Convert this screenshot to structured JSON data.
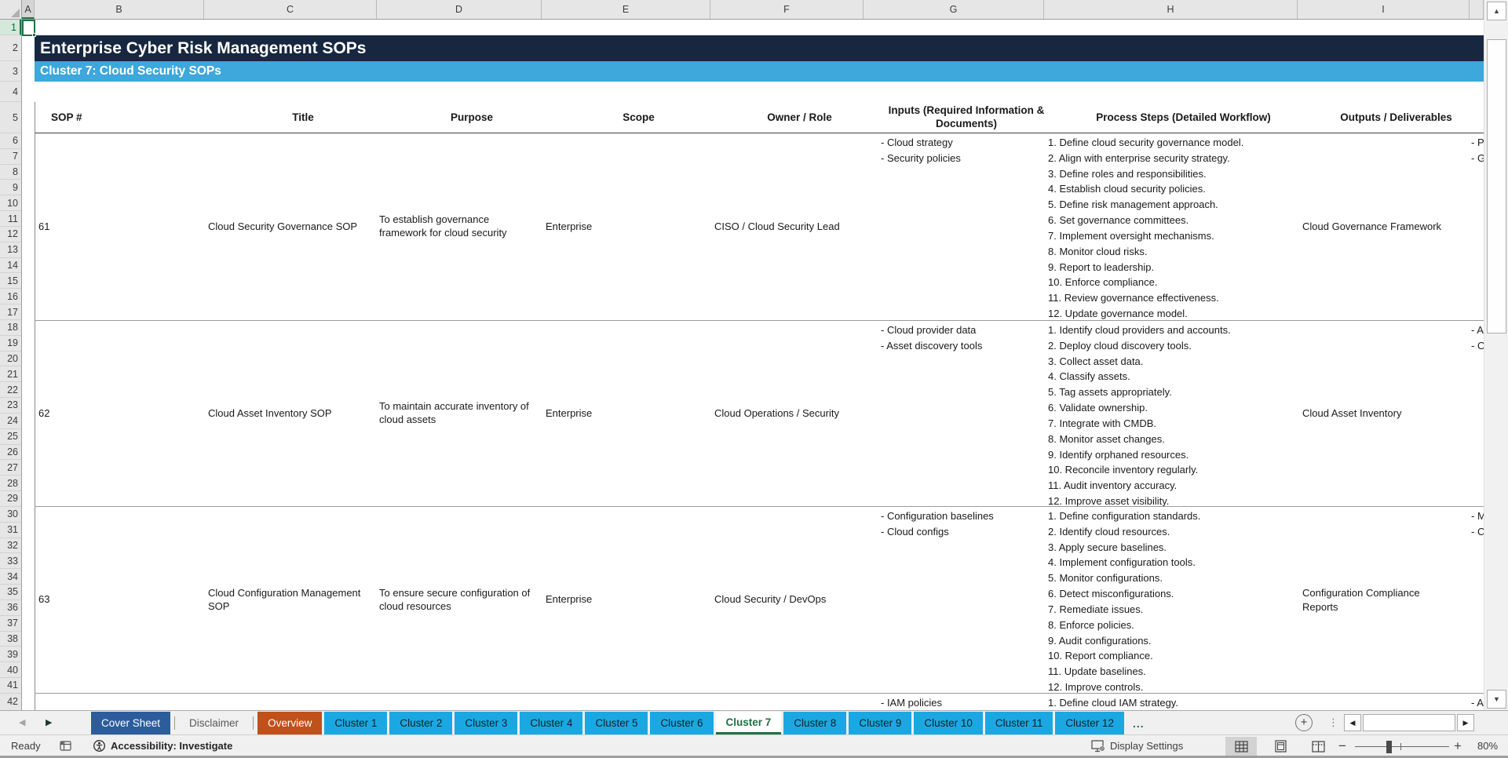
{
  "banner": {
    "title": "Enterprise Cyber Risk Management SOPs",
    "subtitle": "Cluster 7: Cloud Security SOPs"
  },
  "grid": {
    "column_letters": [
      "A",
      "B",
      "C",
      "D",
      "E",
      "F",
      "G",
      "H",
      "I"
    ],
    "row_count": 42,
    "active_cell": "A1"
  },
  "table": {
    "headers": [
      "SOP #",
      "Title",
      "Purpose",
      "Scope",
      "Owner / Role",
      "Inputs (Required Information & Documents)",
      "Process Steps (Detailed Workflow)",
      "Outputs / Deliverables"
    ],
    "sops": [
      {
        "num": "61",
        "title": "Cloud Security Governance SOP",
        "purpose": "To establish governance framework for cloud security",
        "scope": "Enterprise",
        "owner": "CISO / Cloud Security Lead",
        "inputs": [
          "- Cloud strategy",
          "- Security policies"
        ],
        "steps": [
          "1. Define cloud security governance model.",
          "2. Align with enterprise security strategy.",
          "3. Define roles and responsibilities.",
          "4. Establish cloud security policies.",
          "5. Define risk management approach.",
          "6. Set governance committees.",
          "7. Implement oversight mechanisms.",
          "8. Monitor cloud risks.",
          "9. Report to leadership.",
          "10. Enforce compliance.",
          "11. Review governance effectiveness.",
          "12. Update governance model."
        ],
        "outputs": "Cloud Governance Framework",
        "truncated": [
          "- Po",
          "- Go"
        ]
      },
      {
        "num": "62",
        "title": "Cloud Asset Inventory SOP",
        "purpose": "To maintain accurate inventory of cloud assets",
        "scope": "Enterprise",
        "owner": "Cloud Operations / Security",
        "inputs": [
          "- Cloud provider data",
          "- Asset discovery tools"
        ],
        "steps": [
          "1. Identify cloud providers and accounts.",
          "2. Deploy cloud discovery tools.",
          "3. Collect asset data.",
          "4. Classify assets.",
          "5. Tag assets appropriately.",
          "6. Validate ownership.",
          "7. Integrate with CMDB.",
          "8. Monitor asset changes.",
          "9. Identify orphaned resources.",
          "10. Reconcile inventory regularly.",
          "11. Audit inventory accuracy.",
          "12. Improve asset visibility."
        ],
        "outputs": "Cloud Asset Inventory",
        "truncated": [
          "- As",
          "- Or"
        ]
      },
      {
        "num": "63",
        "title": "Cloud Configuration Management SOP",
        "purpose": "To ensure secure configuration of cloud resources",
        "scope": "Enterprise",
        "owner": "Cloud Security / DevOps",
        "inputs": [
          "- Configuration baselines",
          "- Cloud configs"
        ],
        "steps": [
          "1. Define configuration standards.",
          "2. Identify cloud resources.",
          "3. Apply secure baselines.",
          "4. Implement configuration tools.",
          "5. Monitor configurations.",
          "6. Detect misconfigurations.",
          "7. Remediate issues.",
          "8. Enforce policies.",
          "9. Audit configurations.",
          "10. Report compliance.",
          "11. Update baselines.",
          "12. Improve controls."
        ],
        "outputs": "Configuration Compliance Reports",
        "truncated": [
          "- Mi",
          "- Co"
        ]
      }
    ],
    "partial_row": {
      "inputs": "- IAM policies",
      "step": "1. Define cloud IAM strategy.",
      "truncated": "- Ad"
    }
  },
  "tab_bar": {
    "tabs": [
      {
        "label": "Cover Sheet",
        "style": "cover"
      },
      {
        "label": "Disclaimer",
        "style": "plain"
      },
      {
        "label": "Overview",
        "style": "overview"
      },
      {
        "label": "Cluster 1",
        "style": "cluster"
      },
      {
        "label": "Cluster 2",
        "style": "cluster"
      },
      {
        "label": "Cluster 3",
        "style": "cluster"
      },
      {
        "label": "Cluster 4",
        "style": "cluster"
      },
      {
        "label": "Cluster 5",
        "style": "cluster"
      },
      {
        "label": "Cluster 6",
        "style": "cluster"
      },
      {
        "label": "Cluster 7",
        "style": "cluster",
        "active": true
      },
      {
        "label": "Cluster 8",
        "style": "cluster"
      },
      {
        "label": "Cluster 9",
        "style": "cluster"
      },
      {
        "label": "Cluster 10",
        "style": "cluster"
      },
      {
        "label": "Cluster 11",
        "style": "cluster"
      },
      {
        "label": "Cluster 12",
        "style": "cluster"
      }
    ],
    "overflow_label": "..."
  },
  "status_bar": {
    "ready": "Ready",
    "accessibility": "Accessibility: Investigate",
    "display_settings": "Display Settings",
    "zoom_level": "80%"
  },
  "colors": {
    "banner_navy": "#172740",
    "banner_blue": "#3EA7DB",
    "tab_blue": "#1BA8E2",
    "overview_orange": "#C0511A",
    "cover_blue": "#2D5C9C",
    "active_green": "#1E7145"
  }
}
